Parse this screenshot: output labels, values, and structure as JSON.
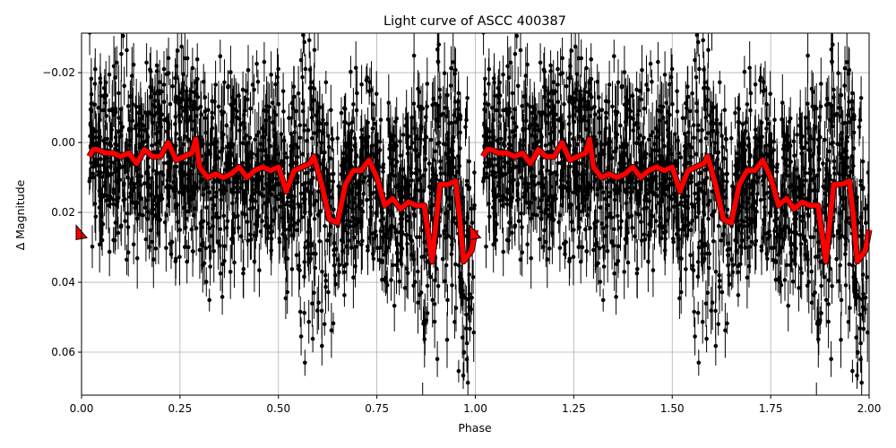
{
  "chart_data": {
    "type": "scatter",
    "title": "Light curve of ASCC 400387",
    "xlabel": "Phase",
    "ylabel": "Δ Magnitude",
    "xlim": [
      0.0,
      2.0
    ],
    "ylim": [
      0.0723,
      -0.0313
    ],
    "y_inverted": true,
    "grid": true,
    "xticks": [
      "0.00",
      "0.25",
      "0.50",
      "0.75",
      "1.00",
      "1.25",
      "1.50",
      "1.75",
      "2.00"
    ],
    "xtick_values": [
      0,
      0.25,
      0.5,
      0.75,
      1.0,
      1.25,
      1.5,
      1.75,
      2.0
    ],
    "yticks": [
      "−0.02",
      "0.00",
      "0.02",
      "0.04",
      "0.06"
    ],
    "ytick_values": [
      -0.02,
      0,
      0.02,
      0.04,
      0.06
    ],
    "series": [
      {
        "name": "observations",
        "kind": "errorbar scatter",
        "color": "#000000",
        "description": "Dense phase-folded photometry, scatter ~ -0.03 to 0.07 mag, repeated over two cycles"
      },
      {
        "name": "binned model",
        "kind": "line",
        "color": "#ff0000",
        "phase": [
          0.02,
          0.03,
          0.04,
          0.06,
          0.08,
          0.1,
          0.12,
          0.14,
          0.16,
          0.18,
          0.2,
          0.22,
          0.24,
          0.26,
          0.28,
          0.29,
          0.3,
          0.32,
          0.34,
          0.36,
          0.38,
          0.4,
          0.42,
          0.44,
          0.46,
          0.48,
          0.5,
          0.52,
          0.54,
          0.56,
          0.58,
          0.59,
          0.61,
          0.63,
          0.65,
          0.67,
          0.69,
          0.71,
          0.73,
          0.75,
          0.77,
          0.79,
          0.81,
          0.83,
          0.85,
          0.87,
          0.89,
          0.91,
          0.93,
          0.95,
          0.96,
          0.97,
          0.99,
          1.0
        ],
        "mag": [
          0.004,
          0.002,
          0.002,
          0.003,
          0.003,
          0.004,
          0.003,
          0.006,
          0.002,
          0.004,
          0.004,
          0.0,
          0.005,
          0.004,
          0.003,
          -0.001,
          0.007,
          0.01,
          0.009,
          0.01,
          0.009,
          0.007,
          0.01,
          0.008,
          0.007,
          0.008,
          0.007,
          0.014,
          0.008,
          0.007,
          0.006,
          0.004,
          0.012,
          0.022,
          0.023,
          0.012,
          0.008,
          0.008,
          0.005,
          0.01,
          0.018,
          0.016,
          0.019,
          0.017,
          0.018,
          0.018,
          0.034,
          0.012,
          0.012,
          0.011,
          0.021,
          0.034,
          0.031,
          0.025
        ]
      }
    ],
    "markers": [
      {
        "shape": "triangle",
        "color": "#ff0000",
        "phase": 0.0,
        "mag": 0.026
      },
      {
        "shape": "triangle",
        "color": "#ff0000",
        "phase": 1.0,
        "mag": 0.026
      }
    ]
  }
}
